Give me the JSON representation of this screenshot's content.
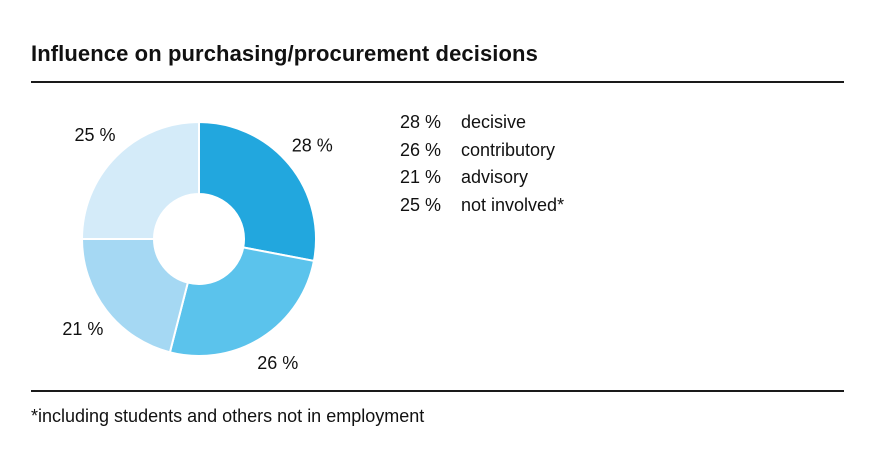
{
  "title": "Influence on purchasing/procurement decisions",
  "footnote": "*including students and others not in employment",
  "chart_data": {
    "type": "pie",
    "donut": true,
    "categories": [
      "decisive",
      "contributory",
      "advisory",
      "not involved*"
    ],
    "values": [
      28,
      26,
      21,
      25
    ],
    "value_labels": [
      "28 %",
      "26 %",
      "21 %",
      "25 %"
    ],
    "colors": [
      "#22a7de",
      "#5bc3ec",
      "#a5d8f3",
      "#d4ebf9"
    ],
    "legend": {
      "placement": "right",
      "entries": [
        {
          "value": "28 %",
          "label": "decisive"
        },
        {
          "value": "26 %",
          "label": "contributory"
        },
        {
          "value": "21 %",
          "label": "advisory"
        },
        {
          "value": "25 %",
          "label": "not involved*"
        }
      ]
    }
  }
}
